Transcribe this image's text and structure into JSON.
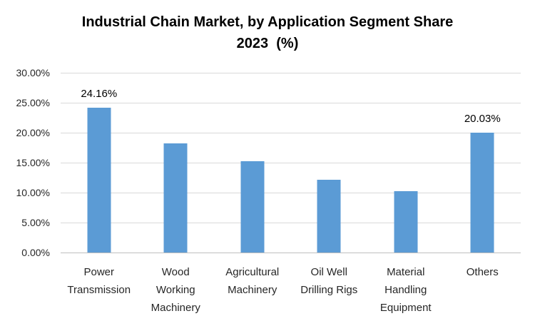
{
  "title": {
    "line1": "Industrial Chain Market, by Application Segment Share",
    "line2": "2023  (%)"
  },
  "chart_data": {
    "type": "bar",
    "title": "Industrial Chain Market, by Application Segment Share 2023 (%)",
    "categories": [
      "Power Transmission",
      "Wood Working Machinery",
      "Agricultural Machinery",
      "Oil Well Drilling Rigs",
      "Material Handling Equipment",
      "Others"
    ],
    "category_label_lines": [
      [
        "Power",
        "Transmission"
      ],
      [
        "Wood",
        "Working",
        "Machinery"
      ],
      [
        "Agricultural",
        "Machinery"
      ],
      [
        "Oil Well",
        "Drilling Rigs"
      ],
      [
        "Material",
        "Handling",
        "Equipment"
      ],
      [
        "Others"
      ]
    ],
    "values": [
      24.16,
      18.2,
      15.2,
      12.2,
      10.2,
      20.03
    ],
    "data_labels": [
      "24.16%",
      null,
      null,
      null,
      null,
      "20.03%"
    ],
    "y_ticks": [
      "30.00%",
      "25.00%",
      "20.00%",
      "15.00%",
      "10.00%",
      "5.00%",
      "0.00%"
    ],
    "ylim": [
      0,
      30
    ],
    "y_tick_step": 5,
    "grid": true,
    "legend": "none",
    "xlabel": "",
    "ylabel": "",
    "bar_color": "#5B9BD5",
    "gridline_color": "#D9D9D9",
    "axis_line_color": "#BFBFBF",
    "label_text_color": "#262626",
    "title_text_color": "#000000"
  }
}
